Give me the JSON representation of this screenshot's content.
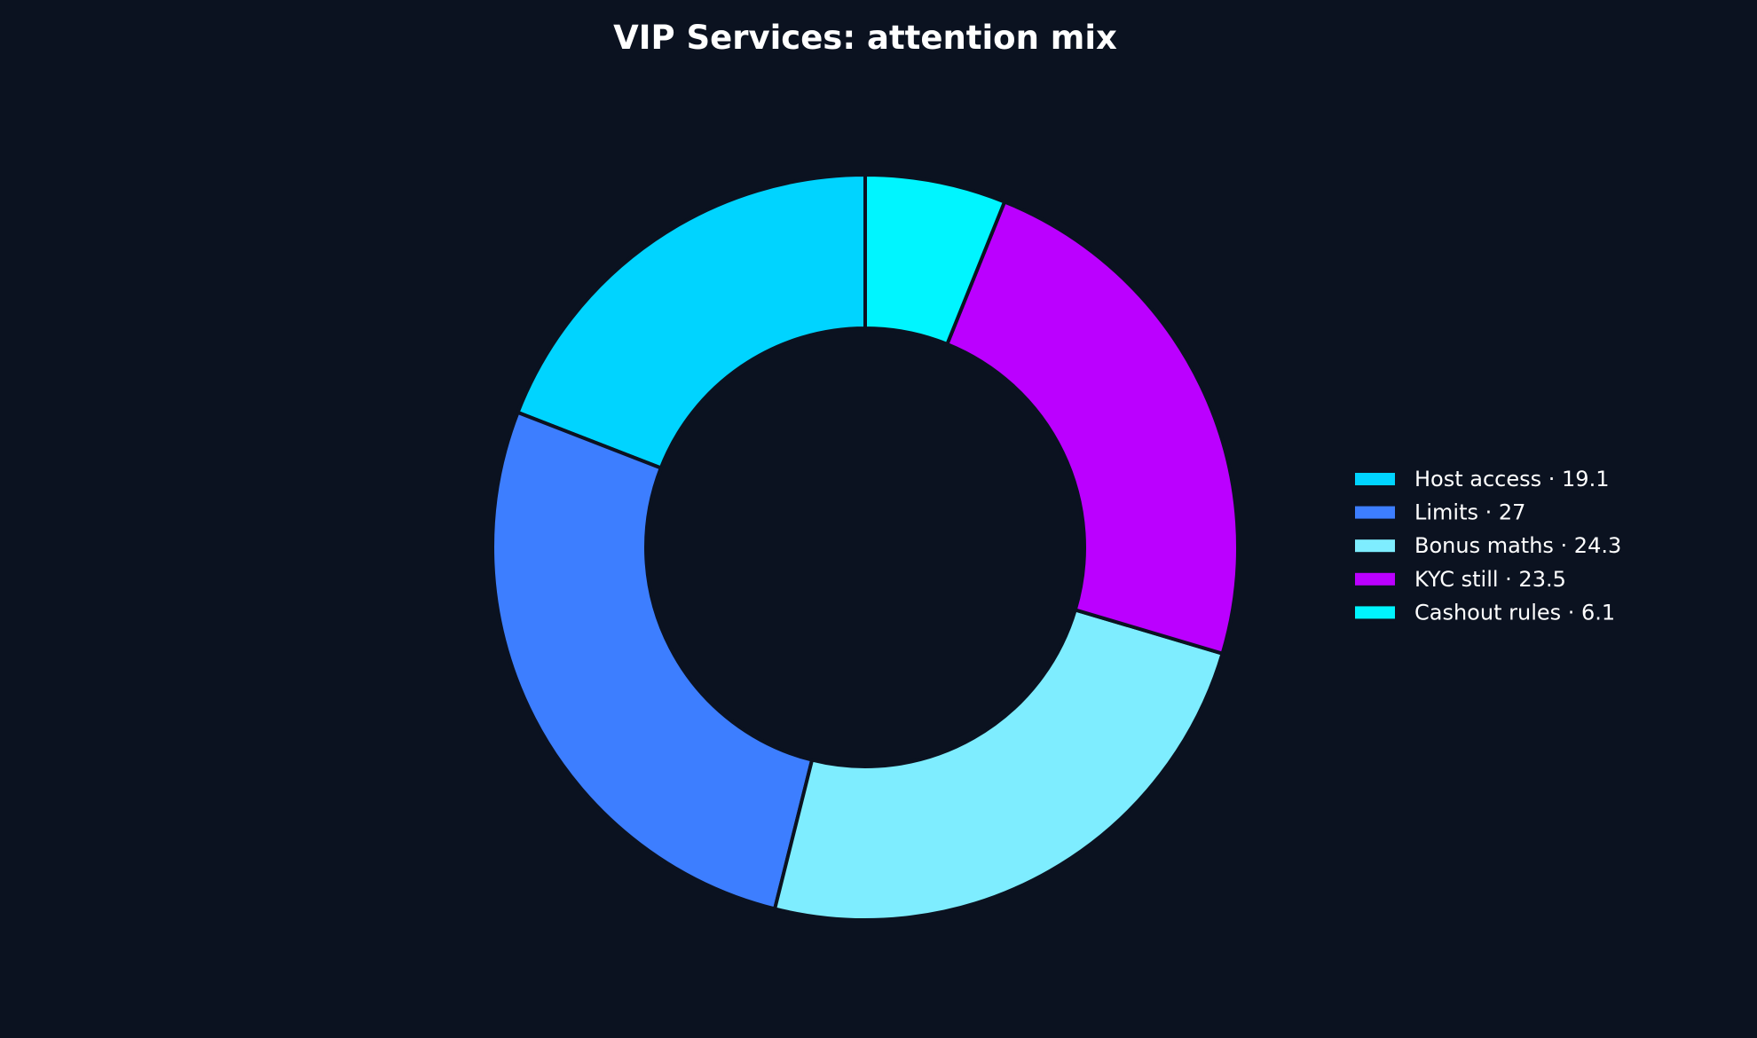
{
  "chart_data": {
    "type": "pie",
    "donut": true,
    "title": "VIP Services: attention mix",
    "start": "top",
    "direction": "clockwise-from-last",
    "background": "#0b1220",
    "edge_color": "#0b1220",
    "slices": [
      {
        "label": "Host access",
        "value": 19.1,
        "color": "#00d4ff",
        "legend": "Host access · 19.1"
      },
      {
        "label": "Limits",
        "value": 27,
        "color": "#3d7eff",
        "legend": "Limits · 27"
      },
      {
        "label": "Bonus maths",
        "value": 24.3,
        "color": "#7eedff",
        "legend": "Bonus maths · 24.3"
      },
      {
        "label": "KYC still",
        "value": 23.5,
        "color": "#bb00ff",
        "legend": "KYC still · 23.5"
      },
      {
        "label": "Cashout rules",
        "value": 6.1,
        "color": "#00f5ff",
        "legend": "Cashout rules · 6.1"
      }
    ],
    "legend_placement": "right"
  }
}
